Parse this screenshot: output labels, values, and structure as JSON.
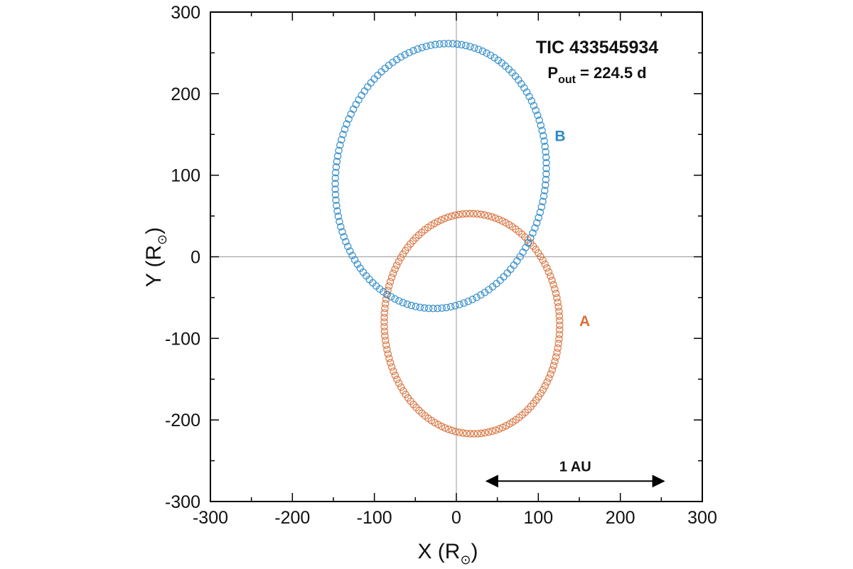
{
  "chart_data": {
    "type": "scatter",
    "title": "TIC 433545934",
    "subtitle": {
      "prefix": "P",
      "subscript": "out",
      "suffix": " = 224.5 d"
    },
    "xlabel": {
      "main": "X (R",
      "sub": "⊙",
      "close": ")"
    },
    "ylabel": {
      "main": "Y (R",
      "sub": "⊙",
      "close": ")"
    },
    "xlim": [
      -300,
      300
    ],
    "ylim": [
      -300,
      300
    ],
    "xticks": [
      "-300",
      "-200",
      "-100",
      "0",
      "100",
      "200",
      "300"
    ],
    "yticks": [
      "-300",
      "-200",
      "-100",
      "0",
      "100",
      "200",
      "300"
    ],
    "grid": false,
    "zero_lines": true,
    "annotation": {
      "label": "1 AU",
      "x_range": [
        37,
        253
      ],
      "y": -275
    },
    "series": [
      {
        "name": "A",
        "color": "#d9703a",
        "ellipse": {
          "center": [
            19,
            -82
          ],
          "rx": 107,
          "ry": 135,
          "tilt_deg": 2
        },
        "label_at": [
          150,
          -85
        ],
        "marker": "open-circle"
      },
      {
        "name": "B",
        "color": "#2b8ac9",
        "ellipse": {
          "center": [
            -19,
            99
          ],
          "rx": 128,
          "ry": 163,
          "tilt_deg": -8
        },
        "label_at": [
          120,
          142
        ],
        "marker": "open-circle"
      }
    ]
  }
}
